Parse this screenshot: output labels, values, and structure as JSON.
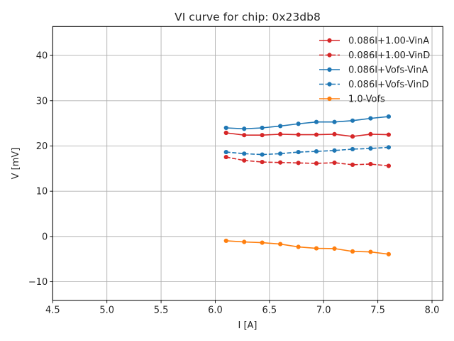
{
  "chart_data": {
    "type": "line",
    "title": "VI curve for chip: 0x23db8",
    "xlabel": "I [A]",
    "ylabel": "V [mV]",
    "xlim": [
      4.5,
      8.1
    ],
    "ylim": [
      -14.1,
      46.4
    ],
    "xticks": [
      4.5,
      5.0,
      5.5,
      6.0,
      6.5,
      7.0,
      7.5,
      8.0
    ],
    "xtick_labels": [
      "4.5",
      "5.0",
      "5.5",
      "6.0",
      "6.5",
      "7.0",
      "7.5",
      "8.0"
    ],
    "yticks": [
      -10,
      0,
      10,
      20,
      30,
      40
    ],
    "ytick_labels": [
      "−10",
      "0",
      "10",
      "20",
      "30",
      "40"
    ],
    "grid": true,
    "legend_position": "top-right",
    "x": [
      6.1,
      6.267,
      6.433,
      6.6,
      6.767,
      6.933,
      7.1,
      7.267,
      7.433,
      7.6
    ],
    "series": [
      {
        "name": "0.086I+1.00-VinA",
        "color": "#d62728",
        "dash": "solid",
        "values": [
          22.9,
          22.4,
          22.4,
          22.6,
          22.5,
          22.5,
          22.6,
          22.1,
          22.6,
          22.5
        ]
      },
      {
        "name": "0.086I+1.00-VinD",
        "color": "#d62728",
        "dash": "dashed",
        "values": [
          17.55,
          16.8,
          16.45,
          16.35,
          16.25,
          16.15,
          16.3,
          15.85,
          16.0,
          15.6
        ]
      },
      {
        "name": "0.086I+Vofs-VinA",
        "color": "#1f77b4",
        "dash": "solid",
        "values": [
          24.0,
          23.8,
          24.0,
          24.4,
          24.9,
          25.3,
          25.3,
          25.6,
          26.1,
          26.5
        ]
      },
      {
        "name": "0.086I+Vofs-VinD",
        "color": "#1f77b4",
        "dash": "dashed",
        "values": [
          18.65,
          18.3,
          18.1,
          18.3,
          18.65,
          18.8,
          19.0,
          19.3,
          19.45,
          19.7
        ]
      },
      {
        "name": "1.0-Vofs",
        "color": "#ff7f0e",
        "dash": "solid",
        "values": [
          -0.95,
          -1.2,
          -1.37,
          -1.68,
          -2.3,
          -2.62,
          -2.67,
          -3.3,
          -3.4,
          -3.92
        ]
      }
    ]
  }
}
